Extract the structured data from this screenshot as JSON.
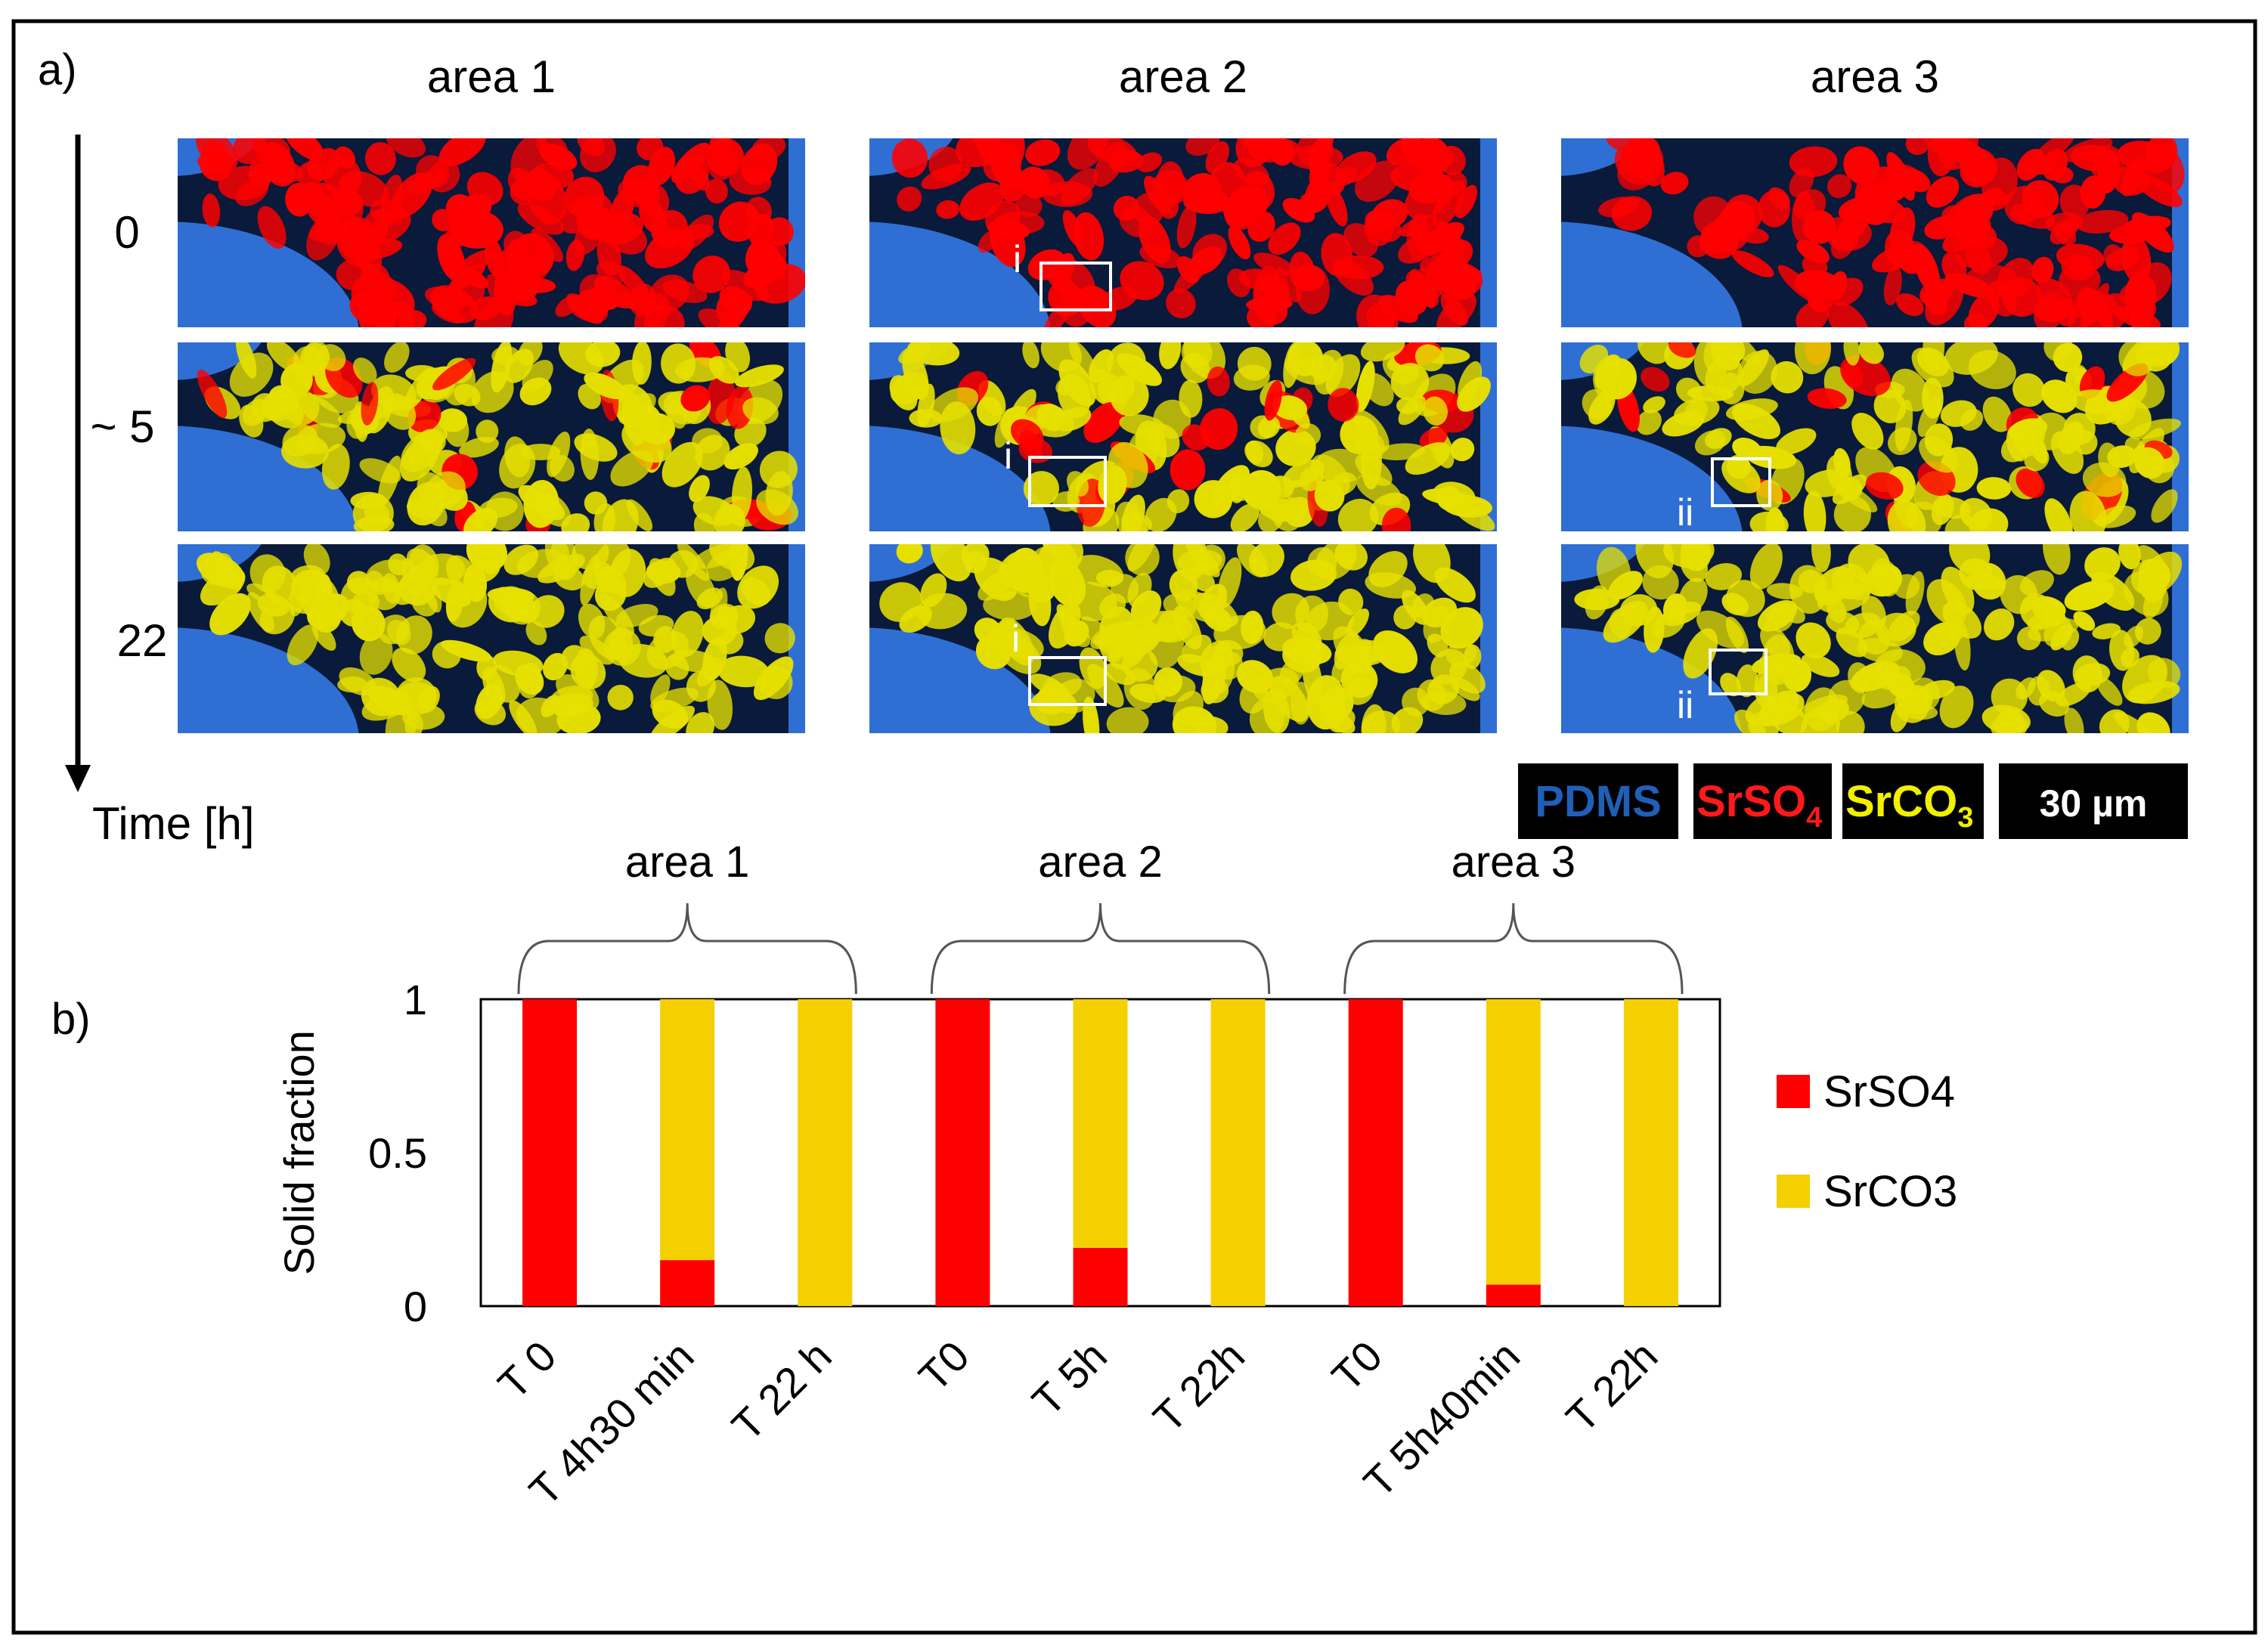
{
  "panel_a": {
    "label": "a)",
    "columns": [
      "area 1",
      "area 2",
      "area 3"
    ],
    "rows": [
      "0",
      "~ 5",
      "22"
    ],
    "time_axis_label": "Time [h]",
    "roi_labels": [
      {
        "row": 0,
        "col": 1,
        "label": "i"
      },
      {
        "row": 1,
        "col": 1,
        "label": "i"
      },
      {
        "row": 2,
        "col": 1,
        "label": "i"
      },
      {
        "row": 1,
        "col": 2,
        "label": "ii"
      },
      {
        "row": 2,
        "col": 2,
        "label": "ii"
      }
    ],
    "legend": {
      "pdms": "PDMS",
      "srso4_base": "SrSO",
      "srso4_sub": "4",
      "srco3_base": "SrCO",
      "srco3_sub": "3",
      "scale_bar": "30 µm"
    }
  },
  "colors": {
    "pdms": "#2f6fd4",
    "pore": "#0a1a3a",
    "srso4": "#ff0000",
    "srco3": "#f5d000",
    "srco3_image": "#e6e000"
  },
  "chart_data": {
    "type": "bar",
    "panel_label": "b)",
    "stacked": true,
    "ylabel": "Solid fraction",
    "ylim": [
      0,
      1
    ],
    "yticks": [
      "0",
      "0.5",
      "1"
    ],
    "groups": [
      {
        "label": "area 1",
        "categories": [
          "T 0",
          "T 4h30 min",
          "T 22 h"
        ]
      },
      {
        "label": "area 2",
        "categories": [
          "T0",
          "T 5h",
          "T 22h"
        ]
      },
      {
        "label": "area 3",
        "categories": [
          "T0",
          "T 5h40min",
          "T 22h"
        ]
      }
    ],
    "categories": [
      "T 0",
      "T 4h30 min",
      "T 22 h",
      "T0",
      "T 5h",
      "T 22h",
      "T0",
      "T 5h40min",
      "T 22h"
    ],
    "series": [
      {
        "name": "SrSO4",
        "color": "#ff0000",
        "values": [
          1.0,
          0.15,
          0.0,
          1.0,
          0.19,
          0.0,
          1.0,
          0.07,
          0.0
        ]
      },
      {
        "name": "SrCO3",
        "color": "#f5d000",
        "values": [
          0.0,
          0.85,
          1.0,
          0.0,
          0.81,
          1.0,
          0.0,
          0.93,
          1.0
        ]
      }
    ],
    "legend": [
      "SrSO4",
      "SrCO3"
    ]
  }
}
